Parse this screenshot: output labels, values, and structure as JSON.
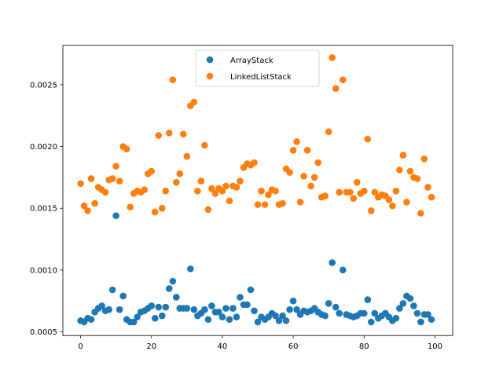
{
  "chart_data": {
    "type": "scatter",
    "title": "",
    "xlabel": "",
    "ylabel": "",
    "xlim": [
      -5,
      105
    ],
    "ylim": [
      0.00047,
      0.00282
    ],
    "xticks": [
      0,
      20,
      40,
      60,
      80,
      100
    ],
    "yticks": [
      0.0005,
      0.001,
      0.0015,
      0.002,
      0.0025
    ],
    "xtick_labels": [
      "0",
      "20",
      "40",
      "60",
      "80",
      "100"
    ],
    "ytick_labels": [
      "0.0005",
      "0.0010",
      "0.0015",
      "0.0020",
      "0.0025"
    ],
    "grid": false,
    "legend_position": "top-center",
    "series": [
      {
        "name": "ArrayStack",
        "color": "#1f77b4",
        "x": [
          0,
          1,
          2,
          3,
          4,
          5,
          6,
          7,
          8,
          9,
          10,
          11,
          12,
          13,
          14,
          15,
          16,
          17,
          18,
          19,
          20,
          21,
          22,
          23,
          24,
          25,
          26,
          27,
          28,
          29,
          30,
          31,
          32,
          33,
          34,
          35,
          36,
          37,
          38,
          39,
          40,
          41,
          42,
          43,
          44,
          45,
          46,
          47,
          48,
          49,
          50,
          51,
          52,
          53,
          54,
          55,
          56,
          57,
          58,
          59,
          60,
          61,
          62,
          63,
          64,
          65,
          66,
          67,
          68,
          69,
          70,
          71,
          72,
          73,
          74,
          75,
          76,
          77,
          78,
          79,
          80,
          81,
          82,
          83,
          84,
          85,
          86,
          87,
          88,
          89,
          90,
          91,
          92,
          93,
          94,
          95,
          96,
          97,
          98,
          99
        ],
        "y": [
          0.00059,
          0.00058,
          0.00061,
          0.0006,
          0.00066,
          0.00069,
          0.00071,
          0.00067,
          0.00068,
          0.00084,
          0.00144,
          0.00068,
          0.00079,
          0.0006,
          0.00058,
          0.00058,
          0.00062,
          0.00066,
          0.00067,
          0.00069,
          0.00071,
          0.00061,
          0.0007,
          0.00063,
          0.0007,
          0.00085,
          0.00091,
          0.00078,
          0.00069,
          0.00069,
          0.00069,
          0.00101,
          0.00068,
          0.00063,
          0.00065,
          0.00068,
          0.0006,
          0.00071,
          0.00066,
          0.00066,
          0.00062,
          0.00069,
          0.0006,
          0.00069,
          0.00062,
          0.00078,
          0.00072,
          0.00072,
          0.00084,
          0.00067,
          0.00058,
          0.00062,
          0.0006,
          0.00062,
          0.00065,
          0.00063,
          0.00059,
          0.00063,
          0.00059,
          0.00068,
          0.00075,
          0.00068,
          0.00064,
          0.00067,
          0.00066,
          0.00067,
          0.00069,
          0.00066,
          0.00064,
          0.00063,
          0.00073,
          0.00106,
          0.0007,
          0.00065,
          0.001,
          0.00064,
          0.00063,
          0.00062,
          0.00063,
          0.00065,
          0.00065,
          0.00076,
          0.00058,
          0.00065,
          0.00061,
          0.00063,
          0.00065,
          0.00062,
          0.00059,
          0.00061,
          0.00069,
          0.00073,
          0.00079,
          0.00077,
          0.00071,
          0.00065,
          0.00058,
          0.00064,
          0.00064,
          0.0006
        ]
      },
      {
        "name": "LinkedListStack",
        "color": "#ff7f0e",
        "x": [
          0,
          1,
          2,
          3,
          4,
          5,
          6,
          7,
          8,
          9,
          10,
          11,
          12,
          13,
          14,
          15,
          16,
          17,
          18,
          19,
          20,
          21,
          22,
          23,
          24,
          25,
          26,
          27,
          28,
          29,
          30,
          31,
          32,
          33,
          34,
          35,
          36,
          37,
          38,
          39,
          40,
          41,
          42,
          43,
          44,
          45,
          46,
          47,
          48,
          49,
          50,
          51,
          52,
          53,
          54,
          55,
          56,
          57,
          58,
          59,
          60,
          61,
          62,
          63,
          64,
          65,
          66,
          67,
          68,
          69,
          70,
          71,
          72,
          73,
          74,
          75,
          76,
          77,
          78,
          79,
          80,
          81,
          82,
          83,
          84,
          85,
          86,
          87,
          88,
          89,
          90,
          91,
          92,
          93,
          94,
          95,
          96,
          97,
          98,
          99
        ],
        "y": [
          0.0017,
          0.00152,
          0.00148,
          0.00174,
          0.00154,
          0.00167,
          0.00165,
          0.00163,
          0.00173,
          0.00174,
          0.00184,
          0.00172,
          0.002,
          0.00198,
          0.00151,
          0.00162,
          0.00164,
          0.00163,
          0.00165,
          0.00178,
          0.0018,
          0.00147,
          0.00209,
          0.0015,
          0.00164,
          0.00211,
          0.00254,
          0.00171,
          0.00178,
          0.0021,
          0.00192,
          0.00233,
          0.00236,
          0.00164,
          0.00172,
          0.00201,
          0.00149,
          0.00166,
          0.00162,
          0.00166,
          0.00164,
          0.00168,
          0.00156,
          0.00168,
          0.00167,
          0.00172,
          0.00183,
          0.00186,
          0.00185,
          0.00187,
          0.00153,
          0.00164,
          0.00153,
          0.00161,
          0.00165,
          0.00164,
          0.00153,
          0.00154,
          0.00182,
          0.00179,
          0.00197,
          0.00204,
          0.00155,
          0.00176,
          0.00197,
          0.00168,
          0.00175,
          0.00187,
          0.00159,
          0.0016,
          0.00212,
          0.00272,
          0.00247,
          0.00163,
          0.00254,
          0.00163,
          0.00163,
          0.00158,
          0.00171,
          0.00162,
          0.00164,
          0.00206,
          0.00148,
          0.00163,
          0.00159,
          0.00161,
          0.0016,
          0.00157,
          0.00152,
          0.00164,
          0.00181,
          0.00193,
          0.00155,
          0.0018,
          0.00175,
          0.00174,
          0.00146,
          0.0019,
          0.00167,
          0.00159
        ]
      }
    ]
  }
}
